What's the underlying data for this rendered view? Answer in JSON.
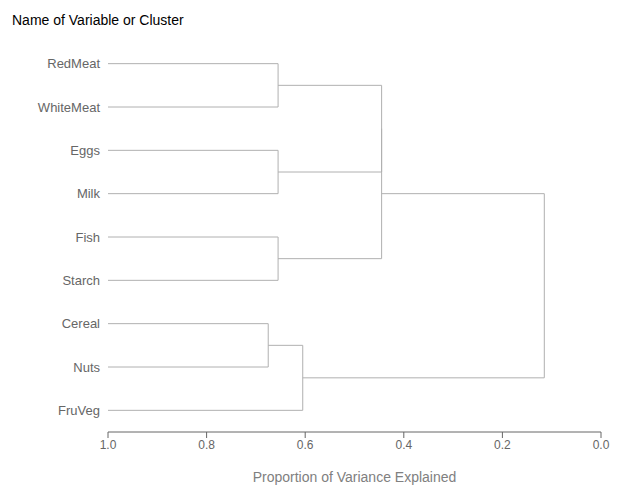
{
  "chart_data": {
    "type": "dendrogram",
    "title": "Name of Variable or Cluster",
    "xlabel": "Proportion of Variance Explained",
    "categories": [
      "RedMeat",
      "WhiteMeat",
      "Eggs",
      "Milk",
      "Fish",
      "Starch",
      "Cereal",
      "Nuts",
      "FruVeg"
    ],
    "xlim": [
      1.0,
      0.0
    ],
    "xticks": [
      {
        "value": 1.0,
        "label": "1.0"
      },
      0.8,
      0.6,
      0.4,
      0.2,
      {
        "value": 0.0,
        "label": "0.0"
      }
    ],
    "color": "#b0b0b0",
    "tree": {
      "x": 0.115,
      "children": [
        {
          "x": 0.445,
          "children": [
            {
              "x": 0.445,
              "children": [
                {
                  "x": 0.655,
                  "children": [
                    "RedMeat",
                    "WhiteMeat"
                  ]
                },
                {
                  "x": 0.655,
                  "children": [
                    "Eggs",
                    "Milk"
                  ]
                }
              ]
            },
            {
              "x": 0.655,
              "children": [
                "Fish",
                "Starch"
              ]
            }
          ]
        },
        {
          "x": 0.605,
          "children": [
            {
              "x": 0.675,
              "children": [
                "Cereal",
                "Nuts"
              ]
            },
            "FruVeg"
          ]
        }
      ]
    }
  }
}
